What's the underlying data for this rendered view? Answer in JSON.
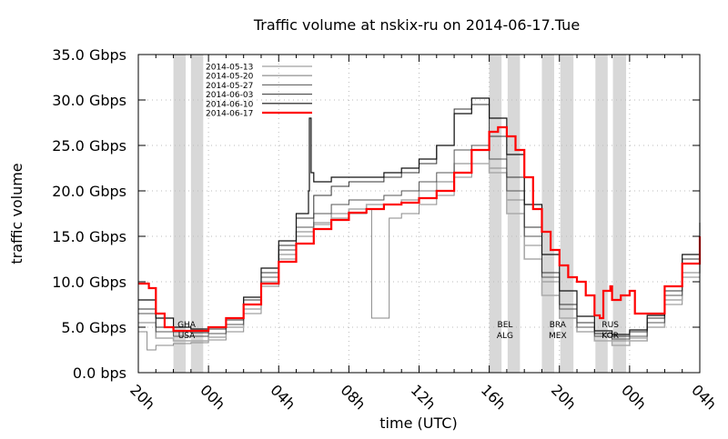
{
  "chart_data": {
    "type": "line",
    "title": "Traffic volume at nskix-ru on 2014-06-17.Tue",
    "xlabel": "time (UTC)",
    "ylabel": "traffic volume",
    "xlim_hours": [
      0,
      32
    ],
    "ylim": [
      0,
      35
    ],
    "grid": true,
    "legend_position": "top-left",
    "y_ticks": [
      {
        "value": 0,
        "label": "0.0  bps"
      },
      {
        "value": 5,
        "label": "5.0 Gbps"
      },
      {
        "value": 10,
        "label": "10.0 Gbps"
      },
      {
        "value": 15,
        "label": "15.0 Gbps"
      },
      {
        "value": 20,
        "label": "20.0 Gbps"
      },
      {
        "value": 25,
        "label": "25.0 Gbps"
      },
      {
        "value": 30,
        "label": "30.0 Gbps"
      },
      {
        "value": 35,
        "label": "35.0 Gbps"
      }
    ],
    "x_ticks": [
      {
        "value": 0,
        "label": "20h"
      },
      {
        "value": 4,
        "label": "00h"
      },
      {
        "value": 8,
        "label": "04h"
      },
      {
        "value": 12,
        "label": "08h"
      },
      {
        "value": 16,
        "label": "12h"
      },
      {
        "value": 20,
        "label": "16h"
      },
      {
        "value": 24,
        "label": "20h"
      },
      {
        "value": 28,
        "label": "00h"
      },
      {
        "value": 32,
        "label": "04h"
      }
    ],
    "match_bands": [
      [
        2.0,
        2.7
      ],
      [
        3.0,
        3.7
      ],
      [
        20.0,
        20.7
      ],
      [
        21.05,
        21.75
      ],
      [
        23.0,
        23.7
      ],
      [
        24.05,
        24.8
      ],
      [
        26.05,
        26.75
      ],
      [
        27.05,
        27.8
      ]
    ],
    "annotations": [
      {
        "x": 2.75,
        "lines": [
          "GHA",
          "USA"
        ]
      },
      {
        "x": 20.9,
        "lines": [
          "BEL",
          "ALG"
        ]
      },
      {
        "x": 23.9,
        "lines": [
          "BRA",
          "MEX"
        ]
      },
      {
        "x": 26.9,
        "lines": [
          "RUS",
          "KOR"
        ]
      }
    ],
    "series": [
      {
        "name": "2014-05-13",
        "color": "#8a8a8a",
        "width": 1,
        "points": [
          [
            0,
            4.5
          ],
          [
            0.5,
            2.5
          ],
          [
            1,
            3
          ],
          [
            2,
            3.2
          ],
          [
            3,
            3.3
          ],
          [
            4,
            3.6
          ],
          [
            5,
            4.5
          ],
          [
            6,
            6.5
          ],
          [
            7,
            9.5
          ],
          [
            8,
            12.5
          ],
          [
            9,
            15
          ],
          [
            10,
            16.3
          ],
          [
            11,
            17
          ],
          [
            12,
            17.5
          ],
          [
            13,
            18
          ],
          [
            13.3,
            6
          ],
          [
            14.3,
            17
          ],
          [
            15,
            17.5
          ],
          [
            16,
            18.5
          ],
          [
            17,
            19.5
          ],
          [
            18,
            21.5
          ],
          [
            19,
            23
          ],
          [
            20,
            22.5
          ],
          [
            21,
            19
          ],
          [
            22,
            14
          ],
          [
            23,
            10
          ],
          [
            24,
            7
          ],
          [
            25,
            5
          ],
          [
            26,
            4
          ],
          [
            27,
            3.5
          ],
          [
            28,
            3.8
          ],
          [
            29,
            5
          ],
          [
            30,
            7.5
          ],
          [
            31,
            10.5
          ],
          [
            32,
            13.5
          ]
        ]
      },
      {
        "name": "2014-05-20",
        "color": "#aaaaaa",
        "width": 1.6,
        "points": [
          [
            0,
            5.5
          ],
          [
            1,
            3.8
          ],
          [
            2,
            3.5
          ],
          [
            3,
            3.5
          ],
          [
            4,
            3.9
          ],
          [
            5,
            5
          ],
          [
            6,
            7
          ],
          [
            7,
            10
          ],
          [
            8,
            13
          ],
          [
            9,
            15.5
          ],
          [
            10,
            16.5
          ],
          [
            11,
            17.5
          ],
          [
            12,
            18
          ],
          [
            13,
            18.5
          ],
          [
            14,
            18.5
          ],
          [
            15,
            19
          ],
          [
            16,
            20
          ],
          [
            17,
            21
          ],
          [
            18,
            23
          ],
          [
            19,
            24.5
          ],
          [
            20,
            22
          ],
          [
            21,
            17.5
          ],
          [
            22,
            12.5
          ],
          [
            23,
            8.5
          ],
          [
            24,
            6
          ],
          [
            25,
            4.5
          ],
          [
            26,
            3.5
          ],
          [
            27,
            3
          ],
          [
            28,
            3.5
          ],
          [
            29,
            5
          ],
          [
            30,
            8
          ],
          [
            31,
            11
          ],
          [
            32,
            13
          ]
        ]
      },
      {
        "name": "2014-05-27",
        "color": "#555555",
        "width": 1,
        "points": [
          [
            0,
            6.5
          ],
          [
            1,
            4.5
          ],
          [
            2,
            4
          ],
          [
            3,
            4
          ],
          [
            4,
            4.3
          ],
          [
            5,
            5.3
          ],
          [
            6,
            7.5
          ],
          [
            7,
            10.5
          ],
          [
            8,
            13.5
          ],
          [
            9,
            16
          ],
          [
            10,
            17.5
          ],
          [
            11,
            18.5
          ],
          [
            12,
            19
          ],
          [
            13,
            19
          ],
          [
            14,
            19.5
          ],
          [
            15,
            20
          ],
          [
            16,
            21
          ],
          [
            17,
            22
          ],
          [
            18,
            24.5
          ],
          [
            19,
            25
          ],
          [
            20,
            23.5
          ],
          [
            21,
            20
          ],
          [
            22,
            15
          ],
          [
            23,
            10.5
          ],
          [
            24,
            7
          ],
          [
            25,
            5
          ],
          [
            26,
            4
          ],
          [
            27,
            3.7
          ],
          [
            28,
            4
          ],
          [
            29,
            5.5
          ],
          [
            30,
            8.5
          ],
          [
            31,
            12
          ],
          [
            32,
            14.5
          ]
        ]
      },
      {
        "name": "2014-06-03",
        "color": "#333333",
        "width": 1,
        "points": [
          [
            0,
            7
          ],
          [
            1,
            5
          ],
          [
            2,
            4.5
          ],
          [
            3,
            4.4
          ],
          [
            4,
            4.8
          ],
          [
            5,
            5.8
          ],
          [
            6,
            8
          ],
          [
            7,
            11
          ],
          [
            8,
            14
          ],
          [
            9,
            17
          ],
          [
            10,
            19.5
          ],
          [
            11,
            20.5
          ],
          [
            12,
            21
          ],
          [
            13,
            21
          ],
          [
            14,
            21.5
          ],
          [
            15,
            22
          ],
          [
            16,
            23
          ],
          [
            17,
            25
          ],
          [
            18,
            29
          ],
          [
            19,
            29.5
          ],
          [
            20,
            26
          ],
          [
            21,
            21.5
          ],
          [
            22,
            16
          ],
          [
            23,
            11
          ],
          [
            24,
            7.5
          ],
          [
            25,
            5.5
          ],
          [
            26,
            4.3
          ],
          [
            27,
            4
          ],
          [
            28,
            4.5
          ],
          [
            29,
            6
          ],
          [
            30,
            9
          ],
          [
            31,
            12.5
          ],
          [
            32,
            16
          ]
        ]
      },
      {
        "name": "2014-06-10",
        "color": "#111111",
        "width": 1.2,
        "points": [
          [
            0,
            8
          ],
          [
            1,
            6
          ],
          [
            2,
            5
          ],
          [
            3,
            4.8
          ],
          [
            4,
            5
          ],
          [
            5,
            6
          ],
          [
            6,
            8.3
          ],
          [
            7,
            11.5
          ],
          [
            8,
            14.5
          ],
          [
            9,
            17.5
          ],
          [
            9.7,
            20
          ],
          [
            9.75,
            28
          ],
          [
            9.85,
            22
          ],
          [
            10,
            21
          ],
          [
            11,
            21.5
          ],
          [
            12,
            21.5
          ],
          [
            13,
            21.5
          ],
          [
            14,
            22
          ],
          [
            15,
            22.5
          ],
          [
            16,
            23.5
          ],
          [
            17,
            25
          ],
          [
            18,
            28.5
          ],
          [
            19,
            30.2
          ],
          [
            20,
            28
          ],
          [
            21,
            24
          ],
          [
            22,
            18.5
          ],
          [
            23,
            13
          ],
          [
            24,
            9
          ],
          [
            25,
            6.2
          ],
          [
            26,
            4.6
          ],
          [
            27,
            4.2
          ],
          [
            28,
            4.7
          ],
          [
            29,
            6.3
          ],
          [
            30,
            9.5
          ],
          [
            31,
            13
          ],
          [
            32,
            16.5
          ]
        ]
      },
      {
        "name": "2014-06-17",
        "color": "#ff0000",
        "width": 2.2,
        "points": [
          [
            0,
            9.8
          ],
          [
            0.6,
            9.3
          ],
          [
            1,
            6.5
          ],
          [
            1.5,
            5
          ],
          [
            2,
            4.6
          ],
          [
            3,
            4.6
          ],
          [
            4,
            5
          ],
          [
            5,
            6
          ],
          [
            6,
            7.5
          ],
          [
            7,
            9.8
          ],
          [
            8,
            12.2
          ],
          [
            9,
            14.2
          ],
          [
            10,
            15.8
          ],
          [
            11,
            16.8
          ],
          [
            12,
            17.6
          ],
          [
            13,
            18
          ],
          [
            14,
            18.5
          ],
          [
            15,
            18.7
          ],
          [
            16,
            19.2
          ],
          [
            17,
            20
          ],
          [
            18,
            22
          ],
          [
            19,
            24.5
          ],
          [
            20,
            26.5
          ],
          [
            20.5,
            27
          ],
          [
            21,
            26
          ],
          [
            21.5,
            24.5
          ],
          [
            22,
            21.5
          ],
          [
            22.5,
            18
          ],
          [
            23,
            15.5
          ],
          [
            23.5,
            13.5
          ],
          [
            24,
            11.8
          ],
          [
            24.5,
            10.5
          ],
          [
            25,
            10
          ],
          [
            25.5,
            8.5
          ],
          [
            26,
            6.3
          ],
          [
            26.3,
            6
          ],
          [
            26.5,
            9
          ],
          [
            26.9,
            9.5
          ],
          [
            27,
            8
          ],
          [
            27.5,
            8.5
          ],
          [
            28,
            9
          ],
          [
            28.3,
            6.5
          ],
          [
            29,
            6.5
          ],
          [
            30,
            9.5
          ],
          [
            31,
            12
          ],
          [
            32,
            15
          ]
        ]
      }
    ]
  }
}
